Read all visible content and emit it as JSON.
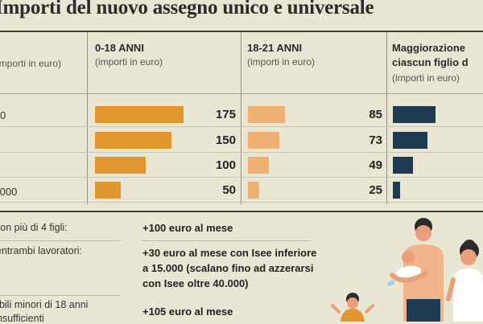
{
  "title": "Importi del nuovo assegno unico e universale",
  "columns": {
    "first_sub": "(importi in euro)",
    "age_0_18": {
      "title": "0-18 ANNI",
      "sub": "(importi in euro)"
    },
    "age_18_21": {
      "title": "18-21 ANNI",
      "sub": "(importi in euro)"
    },
    "maggiorazione": {
      "title_1": "Maggiorazione",
      "title_2": "ciascun figlio d",
      "sub": "(importi in euro)"
    }
  },
  "rows": [
    {
      "label": "0"
    },
    {
      "label": ""
    },
    {
      "label": ""
    },
    {
      "label": ".000"
    }
  ],
  "chart_data": [
    {
      "type": "bar",
      "orientation": "horizontal",
      "series": [
        {
          "name": "0-18 ANNI",
          "values": [
            175,
            150,
            100,
            50
          ]
        }
      ],
      "color": "#e0952e"
    },
    {
      "type": "bar",
      "orientation": "horizontal",
      "series": [
        {
          "name": "18-21 ANNI",
          "values": [
            85,
            73,
            49,
            25
          ]
        }
      ],
      "color": "#f0b274"
    },
    {
      "type": "bar",
      "orientation": "horizontal",
      "series": [
        {
          "name": "Maggiorazione",
          "values": [
            null,
            null,
            null,
            null
          ]
        }
      ],
      "bar_levels": [
        1,
        0.82,
        0.48,
        0.17
      ],
      "color": "#1e3b51"
    }
  ],
  "extras": [
    {
      "label": "con più di 4 figli:",
      "text": [
        "+100 euro al mese"
      ]
    },
    {
      "label": "entrambi lavoratori:",
      "text": [
        "+30 euro al mese con Isee inferiore",
        "a 15.000 (scalano fino ad azzerarsi",
        "con Isee oltre 40.000)"
      ]
    },
    {
      "label_1": "abili minori di 18 anni",
      "label_2": "nsufficienti",
      "text": [
        "+105 euro al mese"
      ]
    }
  ],
  "colors": {
    "bg": "#e9e6d3",
    "orange": "#e0952e",
    "light_orange": "#f0b274",
    "navy": "#1e3b51"
  }
}
